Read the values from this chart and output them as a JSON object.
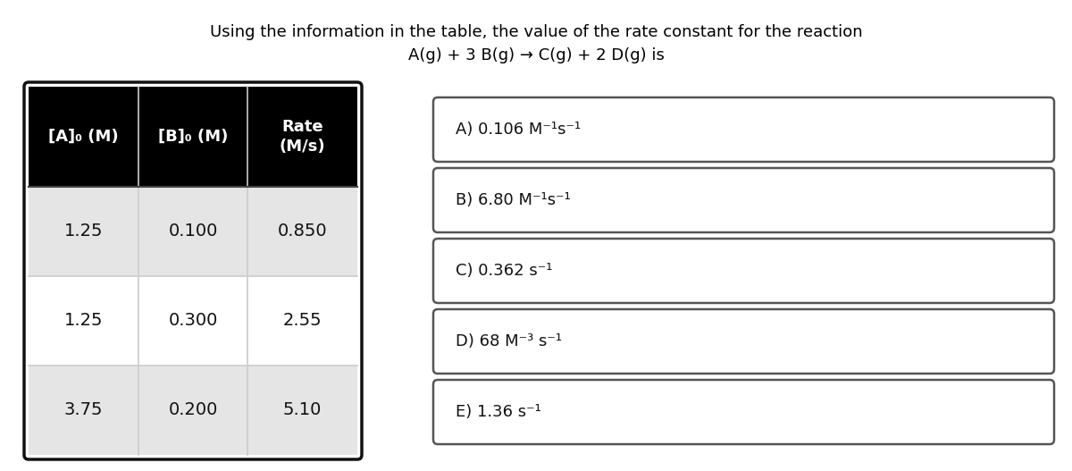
{
  "title_line1": "Using the information in the table, the value of the rate constant for the reaction",
  "title_line2": "A(g) + 3 B(g) → C(g) + 2 D(g) is",
  "table": {
    "headers": [
      "[A]₀ (M)",
      "[B]₀ (M)",
      "Rate\n(M/s)"
    ],
    "rows": [
      [
        "1.25",
        "0.100",
        "0.850"
      ],
      [
        "1.25",
        "0.300",
        "2.55"
      ],
      [
        "3.75",
        "0.200",
        "5.10"
      ]
    ],
    "header_bg": "#000000",
    "header_fg": "#ffffff",
    "row_bg": [
      "#e5e5e5",
      "#ffffff",
      "#e5e5e5"
    ],
    "border_color": "#111111",
    "divider_color": "#cccccc"
  },
  "choices": [
    "A) 0.106 M⁻¹s⁻¹",
    "B) 6.80 M⁻¹s⁻¹",
    "C) 0.362 s⁻¹",
    "D) 68 M⁻³ s⁻¹",
    "E) 1.36 s⁻¹"
  ],
  "title_color": "#000000",
  "choice_text_color": "#111111",
  "bg_color": "#ffffff",
  "title_fontsize": 13,
  "header_fontsize": 13,
  "data_fontsize": 14,
  "choice_fontsize": 13
}
